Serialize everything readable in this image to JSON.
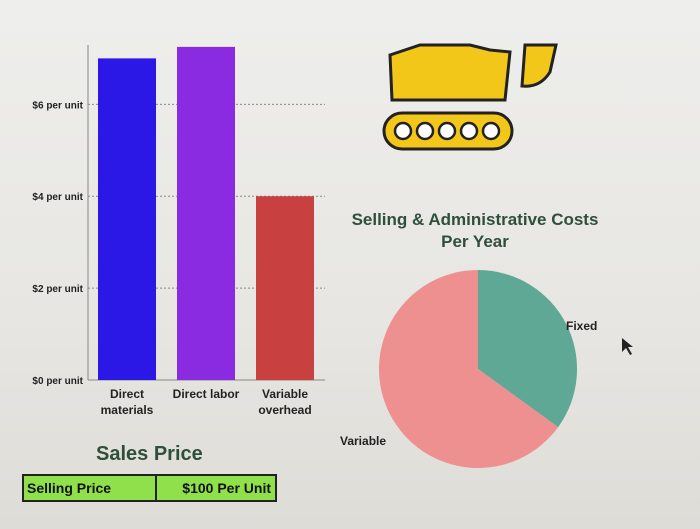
{
  "chart_data": [
    {
      "type": "bar",
      "categories": [
        "Direct materials",
        "Direct labor",
        "Variable overhead"
      ],
      "category_lines": [
        [
          "Direct",
          "materials"
        ],
        [
          "Direct labor"
        ],
        [
          "Variable",
          "overhead"
        ]
      ],
      "values": [
        7,
        7.25,
        4
      ],
      "colors": [
        "#2b17e6",
        "#8a2be2",
        "#c8403f"
      ],
      "yticks": [
        0,
        2,
        4,
        6
      ],
      "ytick_labels": [
        "$0 per unit",
        "$2 per unit",
        "$4 per unit",
        "$6 per unit"
      ],
      "ylim": [
        0,
        7.4
      ],
      "grid": true
    },
    {
      "type": "pie",
      "title_lines": [
        "Selling & Administrative Costs",
        "Per Year"
      ],
      "slices": [
        {
          "label": "Fixed",
          "value": 35,
          "color": "#5fa896"
        },
        {
          "label": "Variable",
          "value": 65,
          "color": "#ee9090"
        }
      ]
    }
  ],
  "sales": {
    "title": "Sales Price",
    "label": "Selling Price",
    "value": "$100 Per Unit"
  }
}
